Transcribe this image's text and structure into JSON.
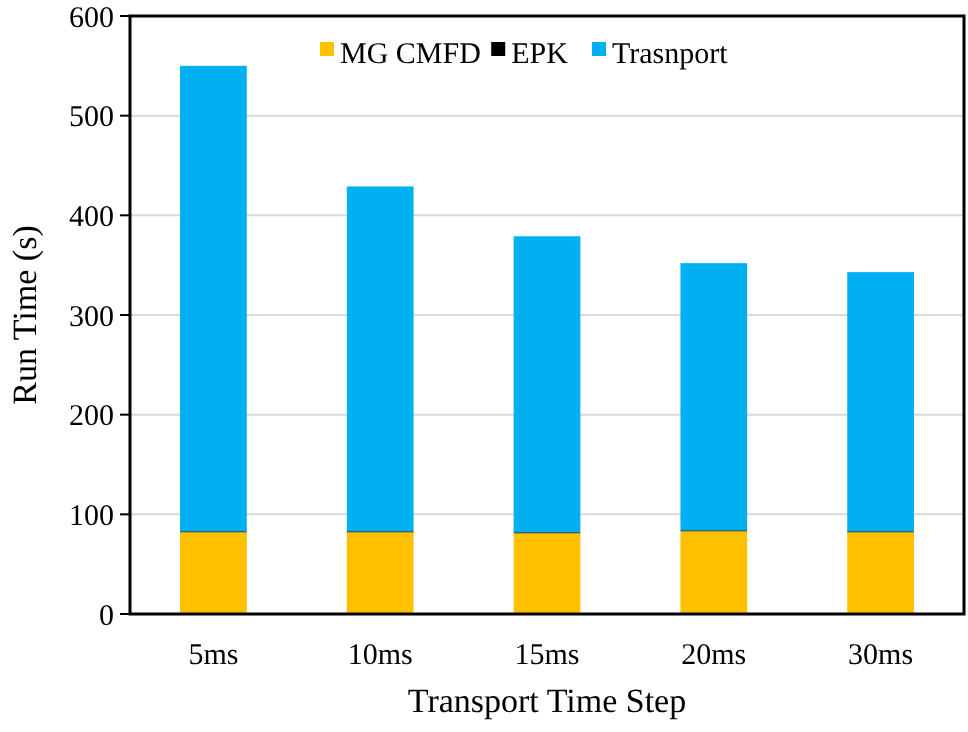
{
  "chart_data": {
    "type": "bar",
    "stacked": true,
    "xlabel": "Transport Time Step",
    "ylabel": "Run Time (s)",
    "categories": [
      "5ms",
      "10ms",
      "15ms",
      "20ms",
      "30ms"
    ],
    "series": [
      {
        "name": "MG CMFD",
        "color": "#ffc000",
        "values": [
          82,
          82,
          81,
          83,
          82
        ]
      },
      {
        "name": "EPK",
        "color": "#000000",
        "values": [
          1,
          1,
          1,
          1,
          1
        ]
      },
      {
        "name": "Trasnport",
        "color": "#00b0f0",
        "values": [
          467,
          346,
          297,
          268,
          260
        ]
      }
    ],
    "ylim": [
      0,
      600
    ],
    "yticks": [
      0,
      100,
      200,
      300,
      400,
      500,
      600
    ],
    "grid": "y",
    "legend": "top"
  }
}
